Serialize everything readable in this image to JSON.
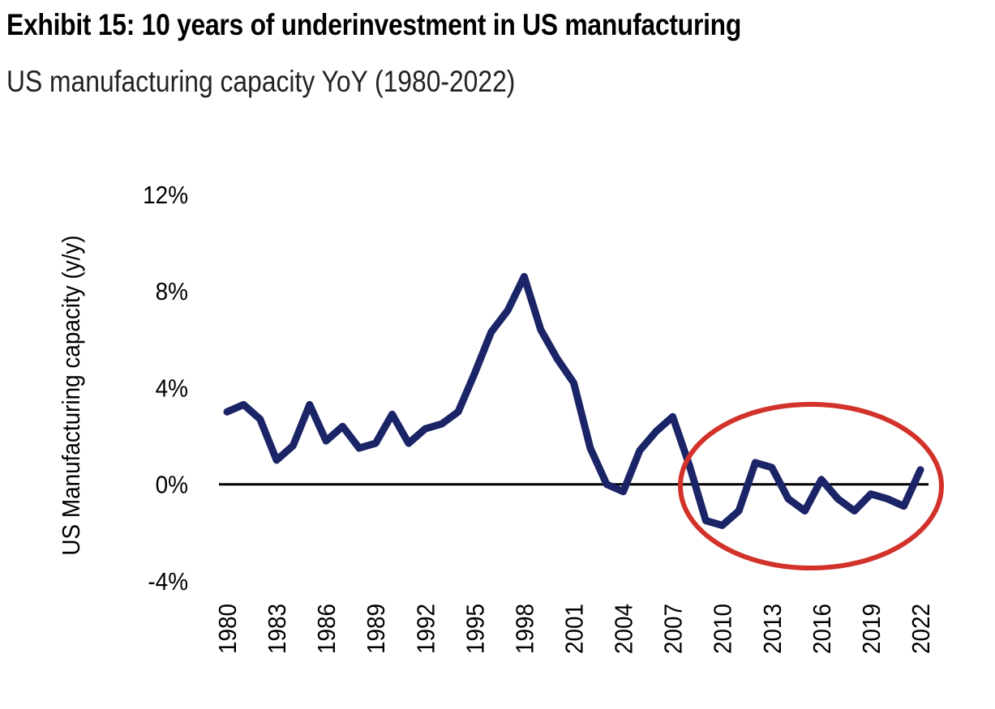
{
  "title": "Exhibit 15: 10 years of underinvestment in US manufacturing",
  "subtitle": "US manufacturing capacity YoY (1980-2022)",
  "chart_data": {
    "type": "line",
    "title": "Exhibit 15: 10 years of underinvestment in US manufacturing",
    "subtitle": "US manufacturing capacity YoY (1980-2022)",
    "xlabel": "",
    "ylabel": "US Manufacturing capacity (y/y)",
    "ylim": [
      -4,
      12
    ],
    "xlim": [
      1980,
      2022
    ],
    "y_ticks": [
      "-4%",
      "0%",
      "4%",
      "8%",
      "12%"
    ],
    "y_tick_values": [
      -4,
      0,
      4,
      8,
      12
    ],
    "x_ticks": [
      "1980",
      "1983",
      "1986",
      "1989",
      "1992",
      "1995",
      "1998",
      "2001",
      "2004",
      "2007",
      "2010",
      "2013",
      "2016",
      "2019",
      "2022"
    ],
    "grid": false,
    "zero_line": true,
    "line_color": "#1a2466",
    "annotation": {
      "shape": "ellipse",
      "color": "#d2322a",
      "x_range": [
        2008,
        2023
      ]
    },
    "x": [
      1980,
      1981,
      1982,
      1983,
      1984,
      1985,
      1986,
      1987,
      1988,
      1989,
      1990,
      1991,
      1992,
      1993,
      1994,
      1995,
      1996,
      1997,
      1998,
      1999,
      2000,
      2001,
      2002,
      2003,
      2004,
      2005,
      2006,
      2007,
      2008,
      2009,
      2010,
      2011,
      2012,
      2013,
      2014,
      2015,
      2016,
      2017,
      2018,
      2019,
      2020,
      2021,
      2022
    ],
    "values": [
      3.0,
      3.3,
      2.7,
      1.0,
      1.6,
      3.3,
      1.8,
      2.4,
      1.5,
      1.7,
      2.9,
      1.7,
      2.3,
      2.5,
      3.0,
      4.6,
      6.3,
      7.2,
      8.6,
      6.4,
      5.2,
      4.2,
      1.5,
      0.0,
      -0.3,
      1.4,
      2.2,
      2.8,
      0.8,
      -1.5,
      -1.7,
      -1.1,
      0.9,
      0.7,
      -0.6,
      -1.1,
      0.2,
      -0.6,
      -1.1,
      -0.4,
      -0.6,
      -0.9,
      0.6
    ]
  }
}
